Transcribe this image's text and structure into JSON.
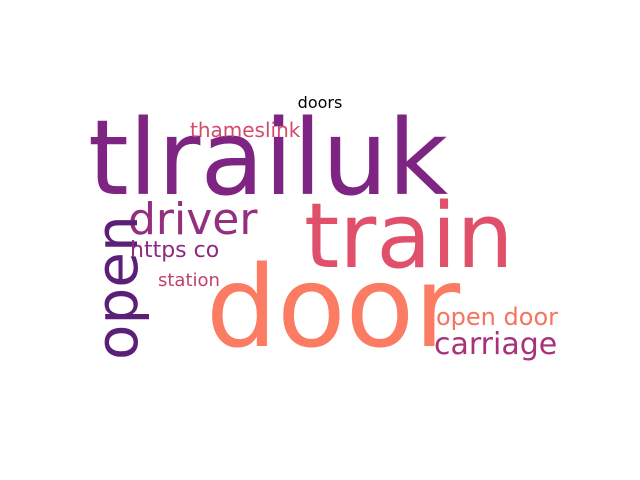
{
  "title": "doors",
  "words": {
    "tlrailuk": {
      "text": "tlrailuk",
      "color": "#7e2482"
    },
    "train": {
      "text": "train",
      "color": "#e0506b"
    },
    "door": {
      "text": "door",
      "color": "#fb7b63"
    },
    "driver": {
      "text": "driver",
      "color": "#942e7e"
    },
    "open": {
      "text": "open",
      "color": "#5c1f78"
    },
    "thameslink": {
      "text": "thameslink",
      "color": "#d34a6b"
    },
    "https_co": {
      "text": "https co",
      "color": "#8b2a80"
    },
    "station": {
      "text": "station",
      "color": "#c0406f"
    },
    "open_door": {
      "text": "open door",
      "color": "#f6735f"
    },
    "carriage": {
      "text": "carriage",
      "color": "#a83279"
    }
  }
}
